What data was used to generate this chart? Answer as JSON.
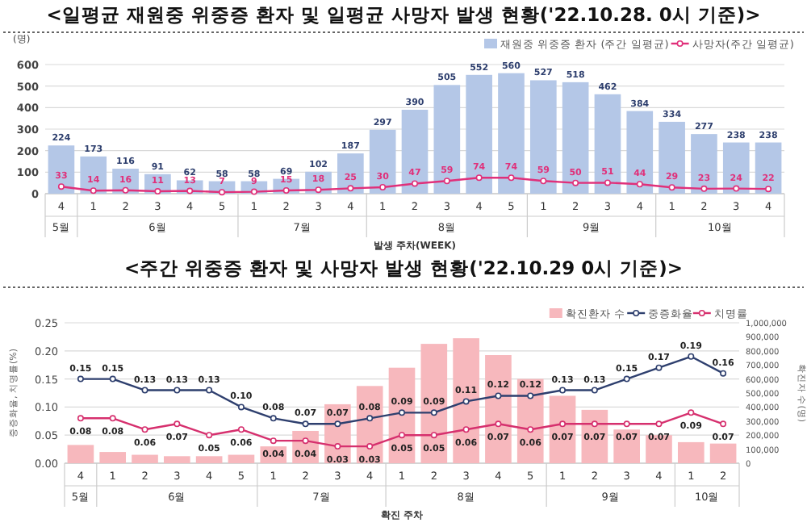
{
  "chart_data": [
    {
      "type": "bar",
      "title": "<일평균 재원중 위중증 환자 및 일평균 사망자 발생 현황('22.10.28. 0시 기준)>",
      "ylabel": "(명)",
      "xlabel": "발생 주차(WEEK)",
      "categories": [
        "4",
        "1",
        "2",
        "3",
        "4",
        "5",
        "1",
        "2",
        "3",
        "4",
        "1",
        "2",
        "3",
        "4",
        "5",
        "1",
        "2",
        "3",
        "4",
        "1",
        "2",
        "3",
        "4"
      ],
      "annotations": [
        "5월",
        "6월",
        "7월",
        "8월",
        "9월",
        "10월"
      ],
      "series": [
        {
          "name": "재원중 위중증 환자 (주간 일평균)",
          "color": "#b4c7e7",
          "values": [
            224,
            173,
            116,
            91,
            62,
            58,
            58,
            69,
            102,
            187,
            297,
            390,
            505,
            552,
            560,
            527,
            518,
            462,
            384,
            334,
            277,
            238,
            238
          ]
        },
        {
          "name": "사망자(주간 일평균)",
          "type": "line",
          "color": "#e0307a",
          "values": [
            33,
            14,
            16,
            11,
            13,
            7,
            9,
            15,
            18,
            25,
            30,
            47,
            59,
            74,
            74,
            59,
            50,
            51,
            44,
            29,
            23,
            24,
            22
          ]
        }
      ],
      "ylim": [
        0,
        600
      ],
      "yticks": [
        0,
        100,
        200,
        300,
        400,
        500,
        600
      ],
      "grid": "y",
      "legend": "top right",
      "marker": "circle",
      "data_labels": true
    },
    {
      "type": "bar",
      "title": "<주간 위중증 환자 및 사망자 발생 현황('22.10.29 0시 기준)>",
      "ylabel": "중증화율, 치명률(%)",
      "y2label": "확진자 수(명)",
      "xlabel": "확진 주차",
      "categories": [
        "4",
        "1",
        "2",
        "3",
        "4",
        "5",
        "1",
        "2",
        "3",
        "4",
        "1",
        "2",
        "3",
        "4",
        "5",
        "1",
        "2",
        "3",
        "4",
        "1",
        "2"
      ],
      "annotations": [
        "5월",
        "6월",
        "7월",
        "8월",
        "9월",
        "10월"
      ],
      "series": [
        {
          "name": "확진환자 수",
          "axis": "y2",
          "color": "#f7b8bd",
          "values": [
            130000,
            80000,
            60000,
            50000,
            50000,
            60000,
            120000,
            230000,
            420000,
            550000,
            680000,
            850000,
            890000,
            770000,
            600000,
            480000,
            380000,
            240000,
            200000,
            150000,
            140000
          ]
        },
        {
          "name": "중증화율",
          "type": "line",
          "color": "#2e3f6e",
          "values": [
            0.15,
            0.15,
            0.13,
            0.13,
            0.13,
            0.1,
            0.08,
            0.07,
            0.07,
            0.08,
            0.09,
            0.09,
            0.11,
            0.12,
            0.12,
            0.13,
            0.13,
            0.15,
            0.17,
            0.19,
            0.16
          ],
          "value_labels": [
            "0.15",
            "0.15",
            "0.13",
            "0.13",
            "0.13",
            "0.10",
            "0.08",
            "0.07",
            "0.07",
            "0.08",
            "0.09",
            "0.09",
            "0.11",
            "0.12",
            "0.12",
            "0.13",
            "0.13",
            "0.15",
            "0.17",
            "0.19",
            "0.16"
          ]
        },
        {
          "name": "치명률",
          "type": "line",
          "color": "#d6306e",
          "values": [
            0.08,
            0.08,
            0.06,
            0.07,
            0.05,
            0.06,
            0.04,
            0.04,
            0.03,
            0.03,
            0.05,
            0.05,
            0.06,
            0.07,
            0.06,
            0.07,
            0.07,
            0.07,
            0.07,
            0.09,
            0.07
          ],
          "value_labels": [
            "0.08",
            "0.08",
            "0.06",
            "0.07",
            "0.05",
            "0.06",
            "0.04",
            "0.04",
            "0.03",
            "0.03",
            "0.05",
            "0.05",
            "0.06",
            "0.07",
            "0.06",
            "0.07",
            "0.07",
            "0.07",
            "0.07",
            "0.09",
            "0.07"
          ]
        }
      ],
      "ylim": [
        0,
        0.25
      ],
      "yticks": [
        {
          "value": 0,
          "label": "0.00"
        },
        {
          "value": 0.05,
          "label": "0.05"
        },
        {
          "value": 0.1,
          "label": "0.10"
        },
        {
          "value": 0.15,
          "label": "0.15"
        },
        {
          "value": 0.2,
          "label": "0.20"
        },
        {
          "value": 0.25,
          "label": "0.25"
        }
      ],
      "y2lim": [
        0,
        1000000
      ],
      "y2ticks": [
        0,
        {
          "value": 100000,
          "label": "100,000"
        },
        {
          "value": 200000,
          "label": "200,000"
        },
        {
          "value": 300000,
          "label": "300,000"
        },
        {
          "value": 400000,
          "label": "400,000"
        },
        {
          "value": 500000,
          "label": "500,000"
        },
        {
          "value": 600000,
          "label": "600,000"
        },
        {
          "value": 700000,
          "label": "700,000"
        },
        {
          "value": 800000,
          "label": "800,000"
        },
        {
          "value": 900000,
          "label": "900,000"
        },
        {
          "value": 1000000,
          "label": "1,000,000"
        }
      ],
      "grid": "y",
      "legend": "top right",
      "marker": "circle"
    }
  ]
}
